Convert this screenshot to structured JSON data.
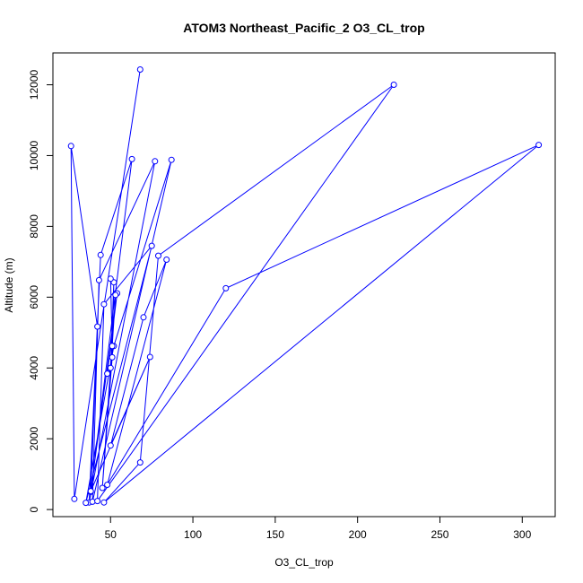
{
  "chart_data": {
    "type": "line",
    "title": "ATOM3 Northeast_Pacific_2 O3_CL_trop",
    "xlabel": "O3_CL_trop",
    "ylabel": "Altitude (m)",
    "xlim": [
      15,
      320
    ],
    "ylim": [
      -200,
      12900
    ],
    "x_ticks": [
      50,
      100,
      150,
      200,
      250,
      300
    ],
    "y_ticks": [
      0,
      2000,
      4000,
      6000,
      8000,
      10000,
      12000
    ],
    "grid": false,
    "legend": "none",
    "series": [
      {
        "color": "#0000ff",
        "marker": "open-circle",
        "points": [
          [
            68,
            12430
          ],
          [
            28,
            300
          ],
          [
            26,
            10270
          ],
          [
            42,
            5170
          ],
          [
            38,
            500
          ],
          [
            63,
            9900
          ],
          [
            44,
            7190
          ],
          [
            37,
            200
          ],
          [
            77,
            9840
          ],
          [
            43,
            6480
          ],
          [
            39,
            220
          ],
          [
            87,
            9880
          ],
          [
            52,
            4620
          ],
          [
            35,
            190
          ],
          [
            75,
            7450
          ],
          [
            46,
            5800
          ],
          [
            42,
            240
          ],
          [
            222,
            12000
          ],
          [
            79,
            7170
          ],
          [
            68,
            1330
          ],
          [
            46,
            200
          ],
          [
            310,
            10300
          ],
          [
            120,
            6250
          ],
          [
            48,
            700
          ],
          [
            84,
            7060
          ],
          [
            70,
            5430
          ],
          [
            50,
            1810
          ],
          [
            74,
            4310
          ],
          [
            38,
            520
          ],
          [
            54,
            6110
          ],
          [
            48,
            3840
          ],
          [
            50,
            4000
          ],
          [
            52,
            6420
          ],
          [
            51,
            4300
          ],
          [
            45,
            610
          ],
          [
            53,
            6060
          ],
          [
            51,
            4620
          ],
          [
            50,
            6520
          ]
        ]
      }
    ]
  }
}
